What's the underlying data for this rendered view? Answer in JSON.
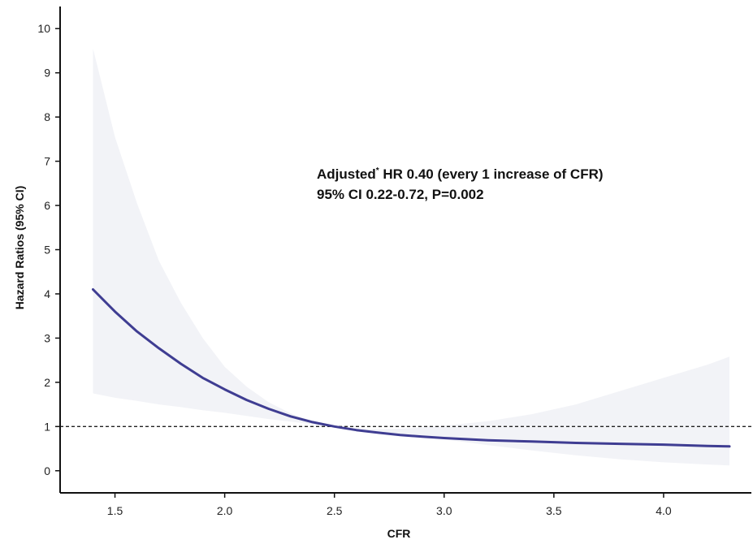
{
  "chart_data": {
    "type": "line",
    "xlabel": "CFR",
    "ylabel": "Hazard Ratios (95% CI)",
    "xlim": [
      1.25,
      4.4
    ],
    "ylim": [
      -0.5,
      10.5
    ],
    "xticks": [
      1.5,
      2.0,
      2.5,
      3.0,
      3.5,
      4.0
    ],
    "xtick_labels": [
      "1.5",
      "2.0",
      "2.5",
      "3.0",
      "3.5",
      "4.0"
    ],
    "yticks": [
      0,
      1,
      2,
      3,
      4,
      5,
      6,
      7,
      8,
      9,
      10
    ],
    "ytick_labels": [
      "0",
      "1",
      "2",
      "3",
      "4",
      "5",
      "6",
      "7",
      "8",
      "9",
      "10"
    ],
    "grid": false,
    "reference_line": {
      "y": 1,
      "style": "dashed"
    },
    "series": [
      {
        "x": [
          1.4,
          1.5,
          1.6,
          1.7,
          1.8,
          1.9,
          2.0,
          2.1,
          2.2,
          2.3,
          2.4,
          2.5,
          2.6,
          2.7,
          2.8,
          2.9,
          3.0,
          3.2,
          3.4,
          3.6,
          3.8,
          4.0,
          4.2,
          4.3
        ],
        "hr": [
          4.1,
          3.6,
          3.15,
          2.77,
          2.42,
          2.1,
          1.84,
          1.6,
          1.4,
          1.23,
          1.1,
          1.0,
          0.92,
          0.86,
          0.81,
          0.77,
          0.74,
          0.69,
          0.66,
          0.63,
          0.61,
          0.59,
          0.56,
          0.55
        ],
        "lower": [
          1.75,
          1.65,
          1.58,
          1.5,
          1.44,
          1.37,
          1.31,
          1.24,
          1.17,
          1.11,
          1.05,
          1.0,
          0.93,
          0.87,
          0.81,
          0.76,
          0.71,
          0.58,
          0.46,
          0.35,
          0.26,
          0.19,
          0.14,
          0.12
        ],
        "upper": [
          9.55,
          7.55,
          6.05,
          4.75,
          3.8,
          3.0,
          2.35,
          1.9,
          1.55,
          1.3,
          1.12,
          1.0,
          0.96,
          0.94,
          0.95,
          0.98,
          1.02,
          1.12,
          1.28,
          1.5,
          1.8,
          2.1,
          2.4,
          2.58
        ]
      }
    ],
    "line_color": "#3f3d92",
    "band_color": "#f2f3f7",
    "annotation": {
      "line1_main": "Adjusted",
      "line1_sup": "*",
      "line1_rest": " HR 0.40 (every 1 increase of CFR)",
      "line2": "95% CI 0.22-0.72, P=0.002"
    }
  }
}
